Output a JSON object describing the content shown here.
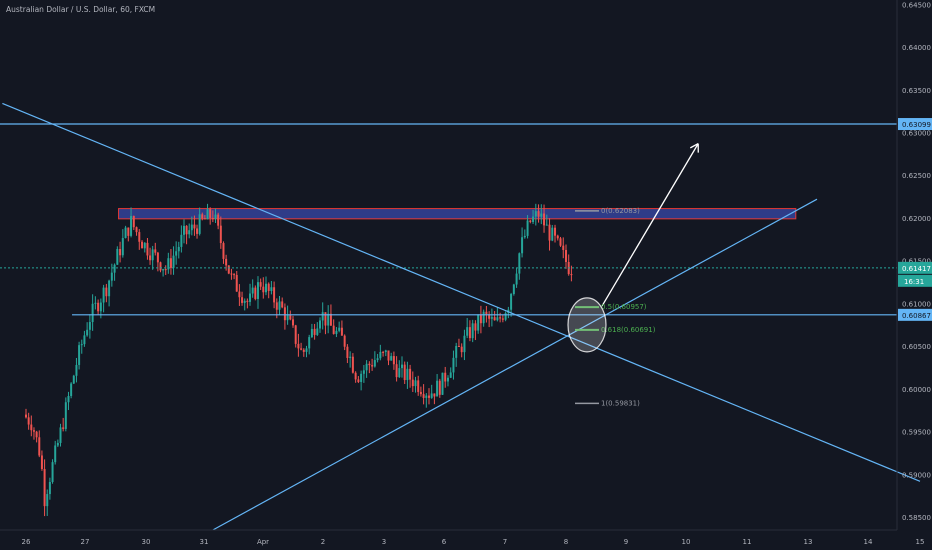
{
  "chart_data": {
    "type": "candlestick",
    "title": "Australian Dollar / U.S. Dollar, 60, FXCM",
    "ylim": [
      0.5835,
      0.6455
    ],
    "y_ticks": [
      0.645,
      0.64,
      0.635,
      0.63,
      0.625,
      0.62,
      0.615,
      0.61,
      0.605,
      0.6,
      0.595,
      0.59,
      0.585
    ],
    "y_tick_labels": [
      "0.64500",
      "0.64000",
      "0.63500",
      "0.63000",
      "0.62500",
      "0.62000",
      "0.61500",
      "0.61000",
      "0.60500",
      "0.60000",
      "0.59500",
      "0.59000",
      "0.58500"
    ],
    "x_ticks": [
      {
        "label": "26",
        "day": 0
      },
      {
        "label": "27",
        "day": 1
      },
      {
        "label": "30",
        "day": 2
      },
      {
        "label": "31",
        "day": 3
      },
      {
        "label": "Apr",
        "day": 4
      },
      {
        "label": "2",
        "day": 5
      },
      {
        "label": "3",
        "day": 6
      },
      {
        "label": "6",
        "day": 7
      },
      {
        "label": "7",
        "day": 8
      },
      {
        "label": "8",
        "day": 9
      },
      {
        "label": "9",
        "day": 10
      },
      {
        "label": "10",
        "day": 11
      },
      {
        "label": "11",
        "day": 12
      },
      {
        "label": "13",
        "day": 13
      },
      {
        "label": "14",
        "day": 14
      },
      {
        "label": "15",
        "day": 15
      }
    ],
    "price_path": [
      [
        0.0,
        0.597
      ],
      [
        0.15,
        0.596
      ],
      [
        0.3,
        0.592
      ],
      [
        0.35,
        0.587
      ],
      [
        0.6,
        0.594
      ],
      [
        0.9,
        0.603
      ],
      [
        1.1,
        0.608
      ],
      [
        1.4,
        0.612
      ],
      [
        1.7,
        0.618
      ],
      [
        1.8,
        0.6195
      ],
      [
        2.0,
        0.617
      ],
      [
        2.4,
        0.614
      ],
      [
        2.7,
        0.618
      ],
      [
        3.0,
        0.6195
      ],
      [
        3.2,
        0.6205
      ],
      [
        3.5,
        0.613
      ],
      [
        3.8,
        0.61
      ],
      [
        4.0,
        0.6125
      ],
      [
        4.4,
        0.609
      ],
      [
        4.7,
        0.604
      ],
      [
        5.0,
        0.609
      ],
      [
        5.2,
        0.607
      ],
      [
        5.4,
        0.6055
      ],
      [
        5.6,
        0.6015
      ],
      [
        5.9,
        0.6035
      ],
      [
        6.1,
        0.604
      ],
      [
        6.3,
        0.602
      ],
      [
        6.5,
        0.6012
      ],
      [
        6.8,
        0.5995
      ],
      [
        7.0,
        0.6005
      ],
      [
        7.2,
        0.6035
      ],
      [
        7.45,
        0.6065
      ],
      [
        7.7,
        0.6085
      ],
      [
        7.9,
        0.6075
      ],
      [
        8.1,
        0.61
      ],
      [
        8.3,
        0.6165
      ],
      [
        8.45,
        0.6195
      ],
      [
        8.6,
        0.6205
      ],
      [
        8.75,
        0.6185
      ],
      [
        8.85,
        0.6175
      ],
      [
        9.0,
        0.6155
      ],
      [
        9.1,
        0.6142
      ]
    ],
    "horizontal_levels": [
      {
        "value": 0.63099,
        "label": "0.63099",
        "color": "#64b5f6"
      },
      {
        "value": 0.60867,
        "label": "0.60867",
        "color": "#64b5f6"
      }
    ],
    "current_price": {
      "value": 0.61417,
      "label": "0.61417",
      "countdown": "16:31",
      "color": "#26a69a"
    },
    "resistance_zone": {
      "top": 0.6211,
      "bottom": 0.6199,
      "x_start_day": 1.55,
      "x_end_day": 12.8
    },
    "fibonacci": [
      {
        "label": "0(0.62083)",
        "value": 0.62083,
        "color": "#9598a1"
      },
      {
        "label": "0.5(0.60957)",
        "value": 0.60957,
        "color": "#4caf50"
      },
      {
        "label": "0.618(0.60691)",
        "value": 0.60691,
        "color": "#4caf50"
      },
      {
        "label": "1(0.59831)",
        "value": 0.59831,
        "color": "#9598a1"
      }
    ],
    "trendlines": [
      {
        "from": [
          -0.4,
          0.6334
        ],
        "to": [
          15.0,
          0.5892
        ],
        "color": "#64b5f6"
      },
      {
        "from": [
          3.15,
          0.5835
        ],
        "to": [
          13.15,
          0.6222
        ],
        "color": "#64b5f6"
      }
    ],
    "projection_arrow": {
      "from": [
        9.6,
        0.6097
      ],
      "to": [
        11.2,
        0.6287
      ],
      "color": "#ffffff"
    },
    "grid": false,
    "legend": "none"
  }
}
